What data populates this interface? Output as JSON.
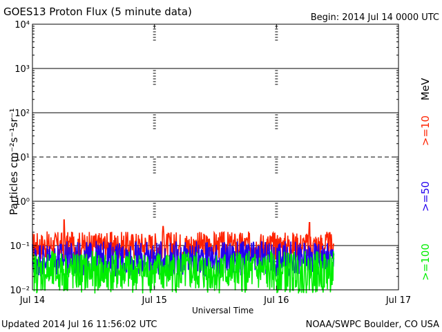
{
  "header": {
    "title": "GOES13 Proton Flux (5 minute data)",
    "begin": "Begin: 2014 Jul 14 0000 UTC"
  },
  "footer": {
    "updated": "Updated 2014 Jul 16 11:56:02 UTC",
    "source": "NOAA/SWPC Boulder, CO USA"
  },
  "chart_data": {
    "type": "line",
    "title": "GOES13 Proton Flux (5 minute data)",
    "xlabel": "Universal Time",
    "ylabel": "Particles cm⁻²s⁻¹sr⁻¹",
    "yscale": "log",
    "ylim": [
      0.01,
      10000
    ],
    "xlim": [
      "Jul 14",
      "Jul 17"
    ],
    "x_ticks": [
      "Jul 14",
      "Jul 15",
      "Jul 16",
      "Jul 17"
    ],
    "y_ticks": [
      "10⁻²",
      "10⁻¹",
      "10⁰",
      "10¹",
      "10²",
      "10³",
      "10⁴"
    ],
    "data_end_day": 2.47,
    "grid": true,
    "units_label": "MeV",
    "series": [
      {
        "name": ">=10",
        "color": "#ff2200",
        "typical": 0.1,
        "spread": 0.08,
        "peaks": [
          [
            0.26,
            0.38
          ],
          [
            1.07,
            0.27
          ],
          [
            2.27,
            0.33
          ]
        ]
      },
      {
        "name": ">=50",
        "color": "#2200ee",
        "typical": 0.05,
        "spread": 0.1,
        "peaks": [
          [
            0.3,
            0.09
          ],
          [
            1.45,
            0.09
          ],
          [
            2.25,
            0.08
          ]
        ]
      },
      {
        "name": ">=100",
        "color": "#00ee00",
        "typical": 0.025,
        "spread": 0.12,
        "peaks": [
          [
            0.35,
            0.06
          ],
          [
            1.55,
            0.05
          ],
          [
            2.4,
            0.05
          ]
        ]
      }
    ]
  }
}
